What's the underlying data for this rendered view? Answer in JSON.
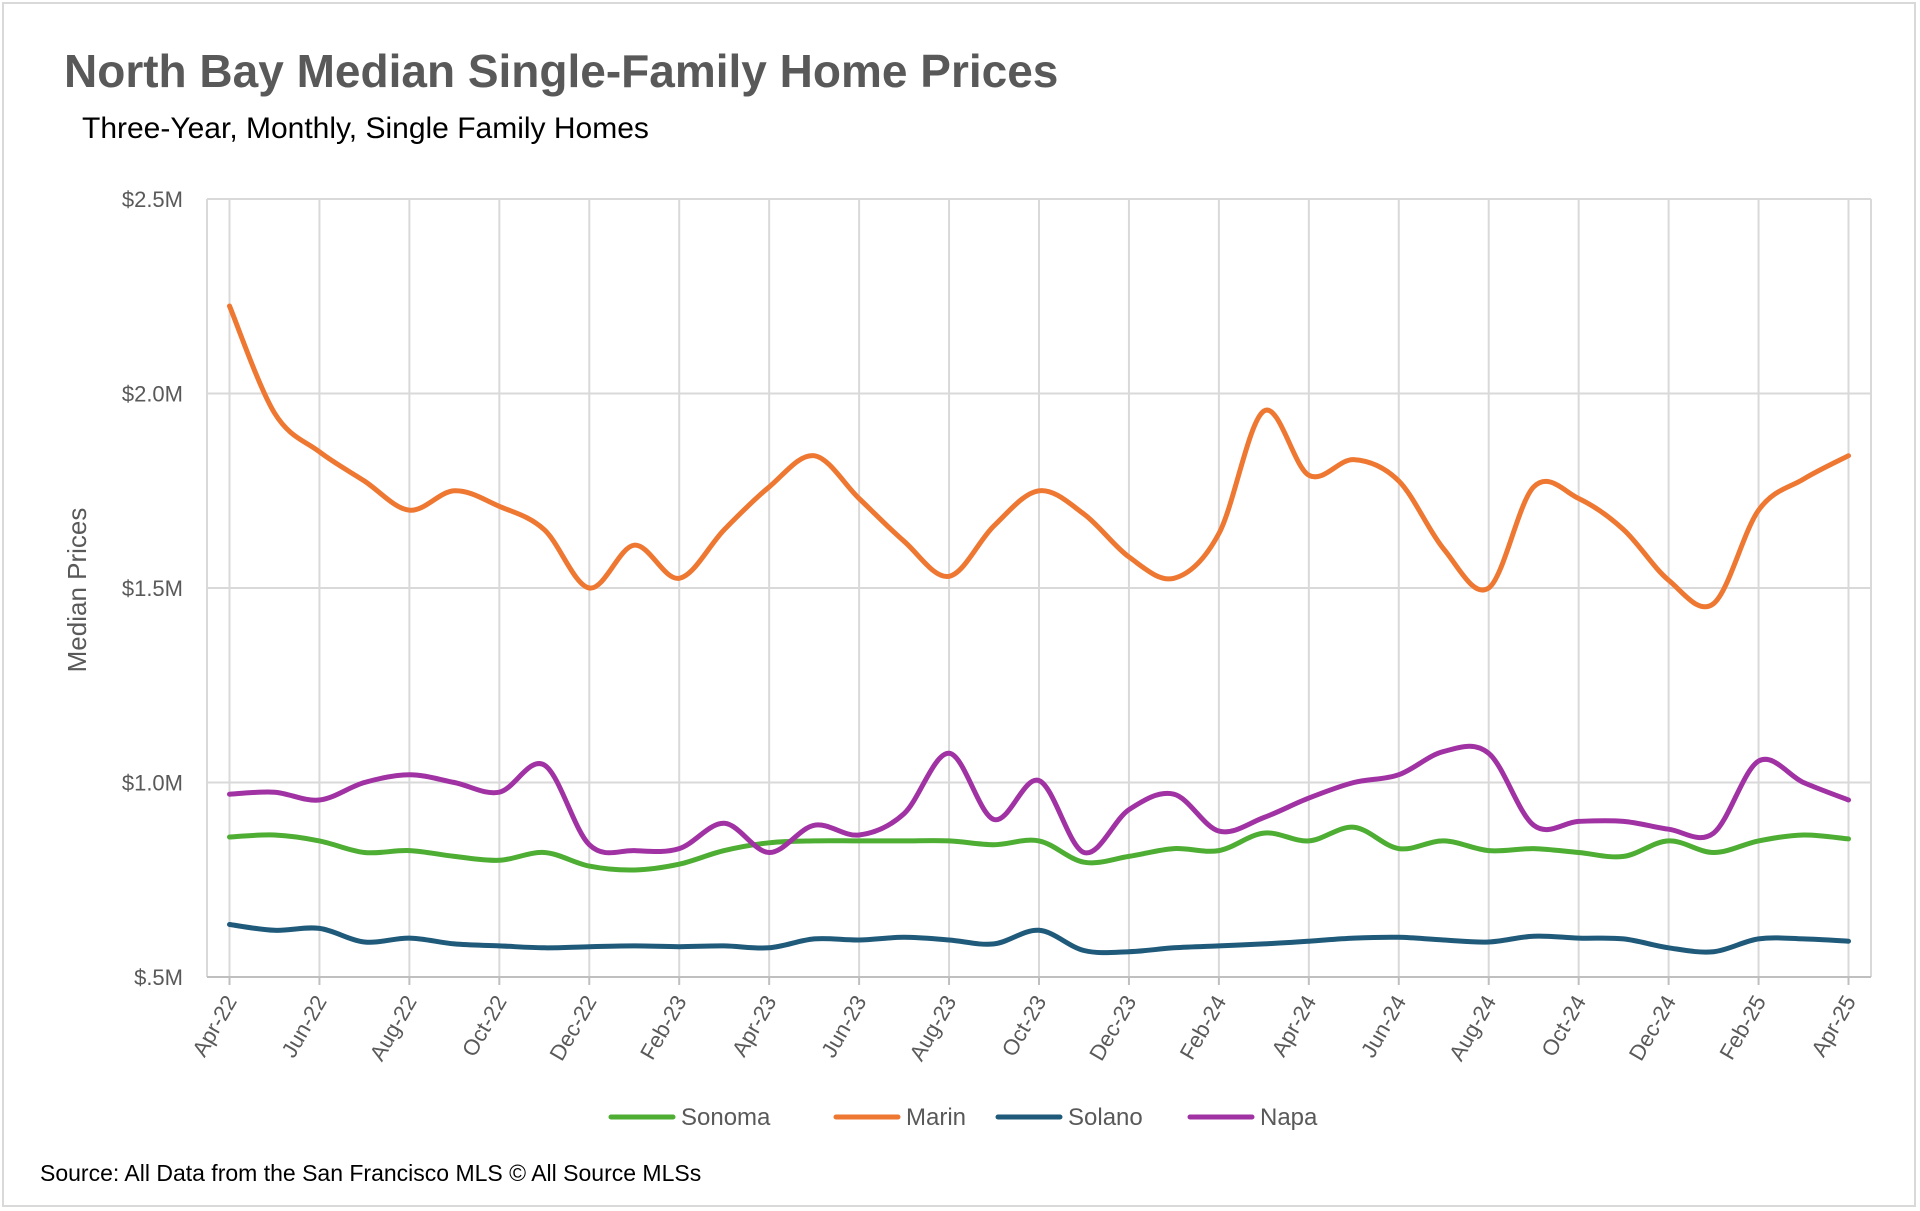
{
  "header": {
    "title": "North Bay Median Single-Family Home Prices",
    "subtitle": "Three-Year, Monthly, Single Family Homes"
  },
  "footer": {
    "source": "Source: All Data from the San Francisco MLS © All Source MLSs"
  },
  "chart_data": {
    "type": "line",
    "title": "North Bay Median Single-Family Home Prices",
    "subtitle": "Three-Year, Monthly, Single Family Homes",
    "xlabel": "",
    "ylabel": "Median Prices",
    "ylim": [
      500000,
      2500000
    ],
    "y_ticks": [
      500000,
      1000000,
      1500000,
      2000000,
      2500000
    ],
    "y_tick_labels": [
      "$.5M",
      "$1.0M",
      "$1.5M",
      "$2.0M",
      "$2.5M"
    ],
    "grid": true,
    "smooth": true,
    "legend_position": "bottom",
    "categories": [
      "Apr-22",
      "May-22",
      "Jun-22",
      "Jul-22",
      "Aug-22",
      "Sep-22",
      "Oct-22",
      "Nov-22",
      "Dec-22",
      "Jan-23",
      "Feb-23",
      "Mar-23",
      "Apr-23",
      "May-23",
      "Jun-23",
      "Jul-23",
      "Aug-23",
      "Sep-23",
      "Oct-23",
      "Nov-23",
      "Dec-23",
      "Jan-24",
      "Feb-24",
      "Mar-24",
      "Apr-24",
      "May-24",
      "Jun-24",
      "Jul-24",
      "Aug-24",
      "Sep-24",
      "Oct-24",
      "Nov-24",
      "Dec-24",
      "Jan-25",
      "Feb-25",
      "Mar-25",
      "Apr-25"
    ],
    "tick_labels_shown": [
      "Apr-22",
      "Jun-22",
      "Aug-22",
      "Oct-22",
      "Dec-22",
      "Feb-23",
      "Apr-23",
      "Jun-23",
      "Aug-23",
      "Oct-23",
      "Dec-23",
      "Feb-24",
      "Apr-24",
      "Jun-24",
      "Aug-24",
      "Oct-24",
      "Dec-24",
      "Feb-25",
      "Apr-25"
    ],
    "series": [
      {
        "name": "Sonoma",
        "color": "#4ead33",
        "values": [
          860000,
          865000,
          850000,
          820000,
          825000,
          810000,
          800000,
          820000,
          785000,
          775000,
          790000,
          825000,
          845000,
          850000,
          850000,
          850000,
          850000,
          840000,
          850000,
          795000,
          810000,
          830000,
          825000,
          870000,
          850000,
          885000,
          830000,
          850000,
          825000,
          830000,
          820000,
          810000,
          850000,
          820000,
          850000,
          865000,
          855000
        ]
      },
      {
        "name": "Marin",
        "color": "#ee7732",
        "values": [
          2225000,
          1950000,
          1850000,
          1775000,
          1700000,
          1750000,
          1710000,
          1650000,
          1500000,
          1610000,
          1525000,
          1650000,
          1760000,
          1840000,
          1730000,
          1620000,
          1530000,
          1660000,
          1750000,
          1690000,
          1580000,
          1525000,
          1640000,
          1955000,
          1790000,
          1830000,
          1775000,
          1600000,
          1500000,
          1760000,
          1730000,
          1650000,
          1520000,
          1460000,
          1700000,
          1780000,
          1840000
        ]
      },
      {
        "name": "Solano",
        "color": "#1f5a7a",
        "values": [
          635000,
          620000,
          625000,
          590000,
          600000,
          585000,
          580000,
          575000,
          578000,
          580000,
          578000,
          580000,
          575000,
          598000,
          595000,
          602000,
          595000,
          585000,
          620000,
          568000,
          565000,
          575000,
          580000,
          585000,
          592000,
          600000,
          602000,
          595000,
          590000,
          605000,
          600000,
          598000,
          575000,
          565000,
          598000,
          598000,
          592000
        ]
      },
      {
        "name": "Napa",
        "color": "#a032a3",
        "values": [
          970000,
          975000,
          955000,
          1000000,
          1020000,
          1000000,
          975000,
          1045000,
          840000,
          825000,
          830000,
          895000,
          820000,
          890000,
          865000,
          920000,
          1075000,
          905000,
          1005000,
          820000,
          930000,
          970000,
          875000,
          910000,
          960000,
          1000000,
          1020000,
          1080000,
          1075000,
          890000,
          900000,
          900000,
          880000,
          870000,
          1055000,
          1000000,
          955000
        ]
      }
    ]
  }
}
